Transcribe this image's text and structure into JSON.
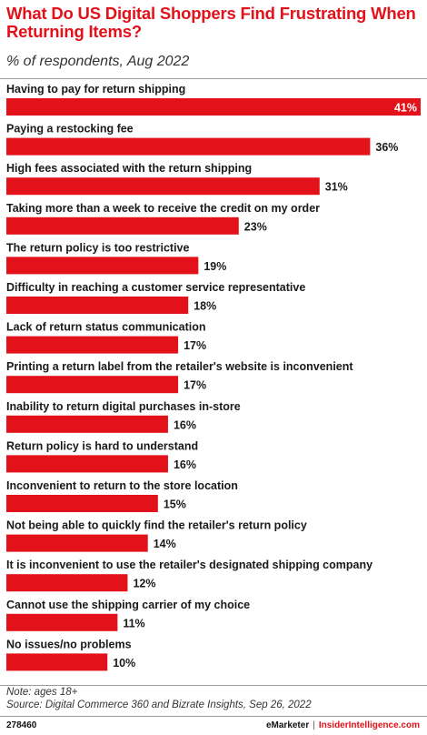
{
  "header": {
    "title": "What Do US Digital Shoppers Find Frustrating When Returning Items?",
    "subtitle": "% of respondents, Aug 2022"
  },
  "chart_data": {
    "type": "bar",
    "orientation": "horizontal",
    "title": "What Do US Digital Shoppers Find Frustrating When Returning Items?",
    "subtitle": "% of respondents, Aug 2022",
    "unit": "%",
    "bar_color": "#e3111a",
    "categories": [
      "Having to pay for return shipping",
      "Paying a restocking fee",
      "High fees associated with the return shipping",
      "Taking more than a week to receive the credit on my order",
      "The return policy is too restrictive",
      "Difficulty in reaching a customer service representative",
      "Lack of return status communication",
      "Printing a return label from the retailer's website is inconvenient",
      "Inability to return digital purchases in-store",
      "Return policy is hard to understand",
      "Inconvenient to return to the store location",
      "Not being able to quickly find the retailer's return policy",
      "It is inconvenient to use the retailer's designated shipping company",
      "Cannot use the shipping carrier of my choice",
      "No issues/no problems"
    ],
    "values": [
      41,
      36,
      31,
      23,
      19,
      18,
      17,
      17,
      16,
      16,
      15,
      14,
      12,
      11,
      10
    ],
    "value_labels": [
      "41%",
      "36%",
      "31%",
      "23%",
      "19%",
      "18%",
      "17%",
      "17%",
      "16%",
      "16%",
      "15%",
      "14%",
      "12%",
      "11%",
      "10%"
    ],
    "xlim": [
      0,
      41
    ]
  },
  "notes": {
    "note": "Note: ages 18+",
    "source": "Source: Digital Commerce 360 and Bizrate Insights, Sep 26, 2022"
  },
  "footer": {
    "chart_id": "278460",
    "brand": "eMarketer",
    "separator": "|",
    "brand2": "InsiderIntelligence.com"
  }
}
